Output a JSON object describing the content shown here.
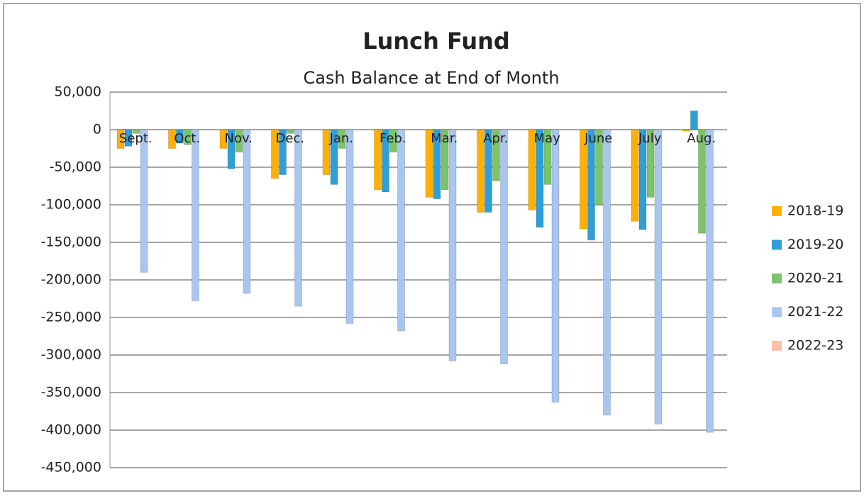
{
  "chart_data": {
    "type": "bar",
    "title": "Lunch Fund",
    "subtitle": "Cash Balance at End of Month",
    "categories": [
      "Sept.",
      "Oct.",
      "Nov.",
      "Dec.",
      "Jan.",
      "Feb.",
      "Mar.",
      "Apr.",
      "May",
      "June",
      "July",
      "Aug."
    ],
    "series": [
      {
        "name": "2018-19",
        "color": "#ffb000",
        "values": [
          -25000,
          -25000,
          -25000,
          -65000,
          -60000,
          -80000,
          -90000,
          -110000,
          -107000,
          -132000,
          -122000,
          -2000
        ]
      },
      {
        "name": "2019-20",
        "color": "#2f9fd8",
        "values": [
          -22000,
          -18000,
          -52000,
          -60000,
          -73000,
          -83000,
          -92000,
          -110000,
          -130000,
          -147000,
          -133000,
          25000
        ]
      },
      {
        "name": "2020-21",
        "color": "#7cc36a",
        "values": [
          -5000,
          -20000,
          -30000,
          -5000,
          -25000,
          -30000,
          -80000,
          -68000,
          -73000,
          -100000,
          -90000,
          -138000
        ]
      },
      {
        "name": "2021-22",
        "color": "#a9c6f0",
        "values": [
          -190000,
          -228000,
          -218000,
          -235000,
          -258000,
          -268000,
          -308000,
          -312000,
          -363000,
          -380000,
          -392000,
          -403000
        ]
      },
      {
        "name": "2022-23",
        "color": "#f8c0a8",
        "values": [
          null,
          null,
          null,
          null,
          null,
          null,
          null,
          null,
          null,
          null,
          null,
          null
        ]
      }
    ],
    "ylim": [
      -450000,
      50000
    ],
    "yticks": [
      {
        "value": -450000,
        "label": "-450,000"
      },
      {
        "value": -400000,
        "label": "-400,000"
      },
      {
        "value": -350000,
        "label": "-350,000"
      },
      {
        "value": -300000,
        "label": "-300,000"
      },
      {
        "value": -250000,
        "label": "-250,000"
      },
      {
        "value": -200000,
        "label": "-200,000"
      },
      {
        "value": -150000,
        "label": "-150,000"
      },
      {
        "value": -100000,
        "label": "-100,000"
      },
      {
        "value": -50000,
        "label": "-50,000"
      },
      0,
      {
        "value": 50000,
        "label": "50,000"
      }
    ],
    "grid": true,
    "legend": "right"
  }
}
